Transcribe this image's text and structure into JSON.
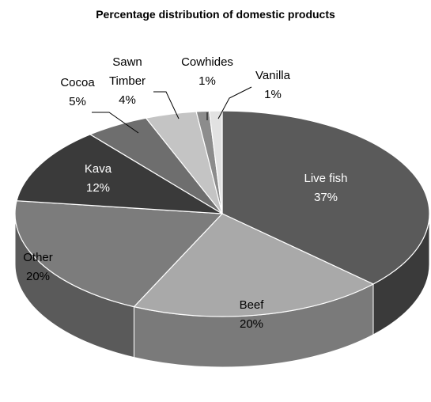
{
  "chart_data": {
    "type": "pie",
    "title": "Percentage distribution of  domestic products",
    "slices": [
      {
        "name": "Live fish",
        "value": 37,
        "label": "37%",
        "color": "#5a5a5a",
        "side": "#3a3a3a"
      },
      {
        "name": "Beef",
        "value": 20,
        "label": "20%",
        "color": "#a9a9a9",
        "side": "#7a7a7a"
      },
      {
        "name": "Other",
        "value": 20,
        "label": "20%",
        "color": "#7c7c7c",
        "side": "#5a5a5a"
      },
      {
        "name": "Kava",
        "value": 12,
        "label": "12%",
        "color": "#3a3a3a",
        "side": "#262626"
      },
      {
        "name": "Cocoa",
        "value": 5,
        "label": "5%",
        "color": "#6e6e6e",
        "side": "#4e4e4e"
      },
      {
        "name": "Sawn Timber",
        "value": 4,
        "label": "4%",
        "color": "#c4c4c4",
        "side": "#989898"
      },
      {
        "name": "Cowhides",
        "value": 1,
        "label": "1%",
        "color": "#8c8c8c",
        "side": "#6a6a6a"
      },
      {
        "name": "Vanilla",
        "value": 1,
        "label": "1%",
        "color": "#e2e2e2",
        "side": "#b8b8b8"
      }
    ]
  }
}
